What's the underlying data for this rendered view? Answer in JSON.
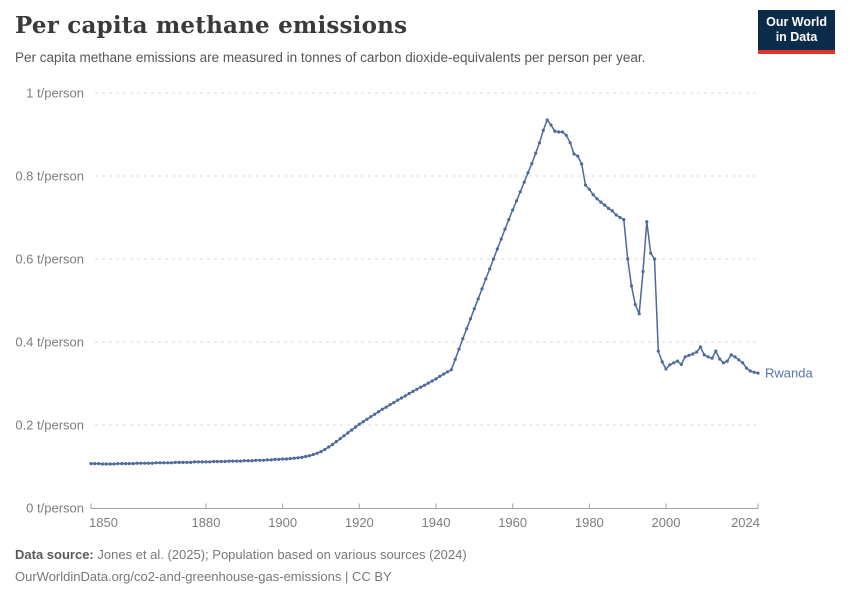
{
  "header": {
    "title": "Per capita methane emissions",
    "subtitle": "Per capita methane emissions are measured in tonnes of carbon dioxide-equivalents per person per year."
  },
  "logo": {
    "line1": "Our World",
    "line2": "in Data"
  },
  "footer": {
    "source_label": "Data source:",
    "source_text": "Jones et al. (2025); Population based on various sources (2024)",
    "note_text": "OurWorldinData.org/co2-and-greenhouse-gas-emissions | CC BY"
  },
  "chart_data": {
    "type": "line",
    "title": "Per capita methane emissions",
    "unit": "t/person",
    "x_range": [
      1850,
      2024
    ],
    "y_range": [
      0,
      1
    ],
    "x_ticks": [
      1850,
      1880,
      1900,
      1920,
      1940,
      1960,
      1980,
      2000,
      2024
    ],
    "y_ticks": [
      0,
      0.2,
      0.4,
      0.6,
      0.8,
      1
    ],
    "y_tick_labels": [
      "0 t/person",
      "0.2 t/person",
      "0.4 t/person",
      "0.6 t/person",
      "0.8 t/person",
      "1 t/person"
    ],
    "grid": "dashed-horizontal",
    "legend_position": "end-of-line-label",
    "colors": {
      "line": "#4c6a9c",
      "entity_label": "#5a74a8",
      "grid": "#dadada",
      "axis": "#a3a3a3",
      "tick_text": "#7d7d7d"
    },
    "series": [
      {
        "name": "Rwanda",
        "x_start": 1850,
        "x_step": 1,
        "values": [
          0.107,
          0.107,
          0.107,
          0.106,
          0.106,
          0.106,
          0.106,
          0.107,
          0.107,
          0.107,
          0.107,
          0.107,
          0.108,
          0.108,
          0.108,
          0.108,
          0.108,
          0.109,
          0.109,
          0.109,
          0.109,
          0.109,
          0.11,
          0.11,
          0.11,
          0.11,
          0.11,
          0.111,
          0.111,
          0.111,
          0.111,
          0.111,
          0.112,
          0.112,
          0.112,
          0.112,
          0.113,
          0.113,
          0.113,
          0.113,
          0.114,
          0.114,
          0.114,
          0.115,
          0.115,
          0.115,
          0.116,
          0.116,
          0.117,
          0.117,
          0.118,
          0.118,
          0.119,
          0.12,
          0.121,
          0.122,
          0.124,
          0.126,
          0.129,
          0.132,
          0.136,
          0.141,
          0.147,
          0.153,
          0.16,
          0.167,
          0.174,
          0.181,
          0.188,
          0.195,
          0.202,
          0.208,
          0.214,
          0.22,
          0.226,
          0.232,
          0.238,
          0.243,
          0.249,
          0.254,
          0.26,
          0.265,
          0.27,
          0.276,
          0.281,
          0.286,
          0.291,
          0.296,
          0.301,
          0.306,
          0.311,
          0.317,
          0.323,
          0.328,
          0.333,
          0.358,
          0.383,
          0.408,
          0.432,
          0.456,
          0.48,
          0.504,
          0.528,
          0.552,
          0.576,
          0.6,
          0.624,
          0.648,
          0.672,
          0.695,
          0.718,
          0.74,
          0.762,
          0.785,
          0.808,
          0.83,
          0.855,
          0.88,
          0.91,
          0.935,
          0.923,
          0.908,
          0.906,
          0.906,
          0.898,
          0.88,
          0.853,
          0.848,
          0.829,
          0.778,
          0.768,
          0.755,
          0.745,
          0.737,
          0.73,
          0.722,
          0.716,
          0.706,
          0.7,
          0.695,
          0.6,
          0.535,
          0.49,
          0.468,
          0.57,
          0.69,
          0.614,
          0.6,
          0.378,
          0.352,
          0.335,
          0.345,
          0.35,
          0.354,
          0.346,
          0.364,
          0.368,
          0.371,
          0.376,
          0.388,
          0.369,
          0.364,
          0.361,
          0.378,
          0.359,
          0.35,
          0.354,
          0.369,
          0.364,
          0.357,
          0.35,
          0.337,
          0.33,
          0.327,
          0.325
        ]
      }
    ]
  }
}
